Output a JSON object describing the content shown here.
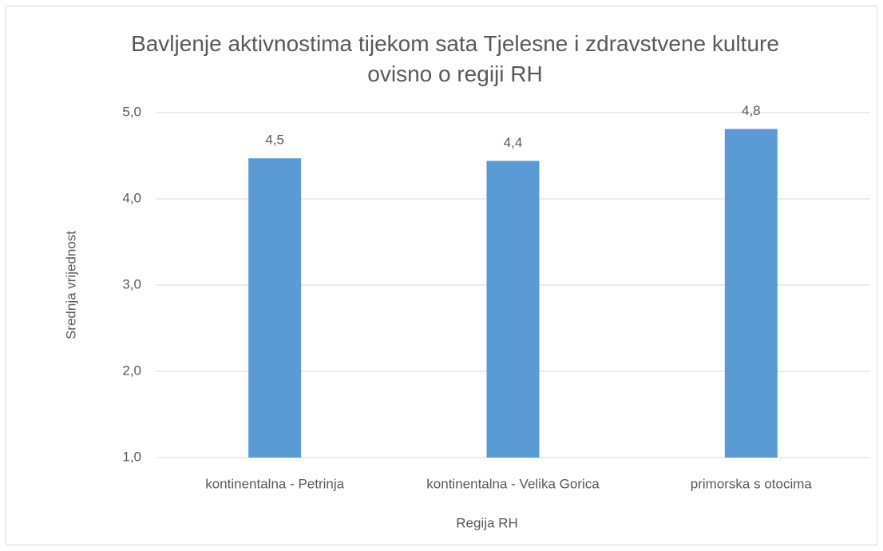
{
  "chart_data": {
    "type": "bar",
    "title": "Bavljenje aktivnostima tijekom sata Tjelesne i zdravstvene kulture ovisno o regiji RH",
    "x_label": "Regija RH",
    "y_label": "Srednja vrijednost",
    "categories": [
      "kontinentalna - Petrinja",
      "kontinentalna - Velika Gorica",
      "primorska s otocima"
    ],
    "values": [
      4.47,
      4.44,
      4.81
    ],
    "value_labels": [
      "4,5",
      "4,4",
      "4,8"
    ],
    "color": "#5b9bd5",
    "ylim": [
      1,
      5
    ],
    "yticks": [
      {
        "value": 1,
        "label": "1,0"
      },
      {
        "value": 2,
        "label": "2,0"
      },
      {
        "value": 3,
        "label": "3,0"
      },
      {
        "value": 4,
        "label": "4,0"
      },
      {
        "value": 5,
        "label": "5,0"
      }
    ],
    "grid": true
  }
}
